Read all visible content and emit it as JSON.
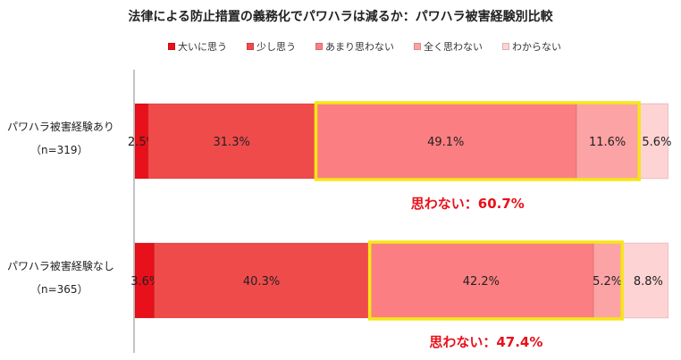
{
  "chart_data": {
    "type": "bar",
    "orientation": "horizontal-stacked-100",
    "title": "法律による防止措置の義務化でパワハラは減るか：パワハラ被害経験別比較",
    "legend_position": "top",
    "series": [
      {
        "name": "大いに思う",
        "color": "#e8101a"
      },
      {
        "name": "少し思う",
        "color": "#f04b4b"
      },
      {
        "name": "あまり思わない",
        "color": "#fb7f82"
      },
      {
        "name": "全く思わない",
        "color": "#fca3a5"
      },
      {
        "name": "わからない",
        "color": "#fdd3d3"
      }
    ],
    "categories": [
      {
        "label": "パワハラ被害経験あり",
        "sublabel": "（n=319）",
        "values": [
          2.5,
          31.3,
          49.1,
          11.6,
          5.6
        ],
        "value_labels": [
          "2.5%",
          "31.3%",
          "49.1%",
          "11.6%",
          "5.6%"
        ],
        "callout": "思わない：60.7%"
      },
      {
        "label": "パワハラ被害経験なし",
        "sublabel": "（n=365）",
        "values": [
          3.6,
          40.3,
          42.2,
          5.2,
          8.8
        ],
        "value_labels": [
          "3.6%",
          "40.3%",
          "42.2%",
          "5.2%",
          "8.8%"
        ],
        "callout": "思わない：47.4%"
      }
    ],
    "highlight": {
      "series_from": 2,
      "series_to": 3,
      "color": "#f5e616"
    },
    "xlim": [
      0,
      100
    ],
    "grid": false
  }
}
